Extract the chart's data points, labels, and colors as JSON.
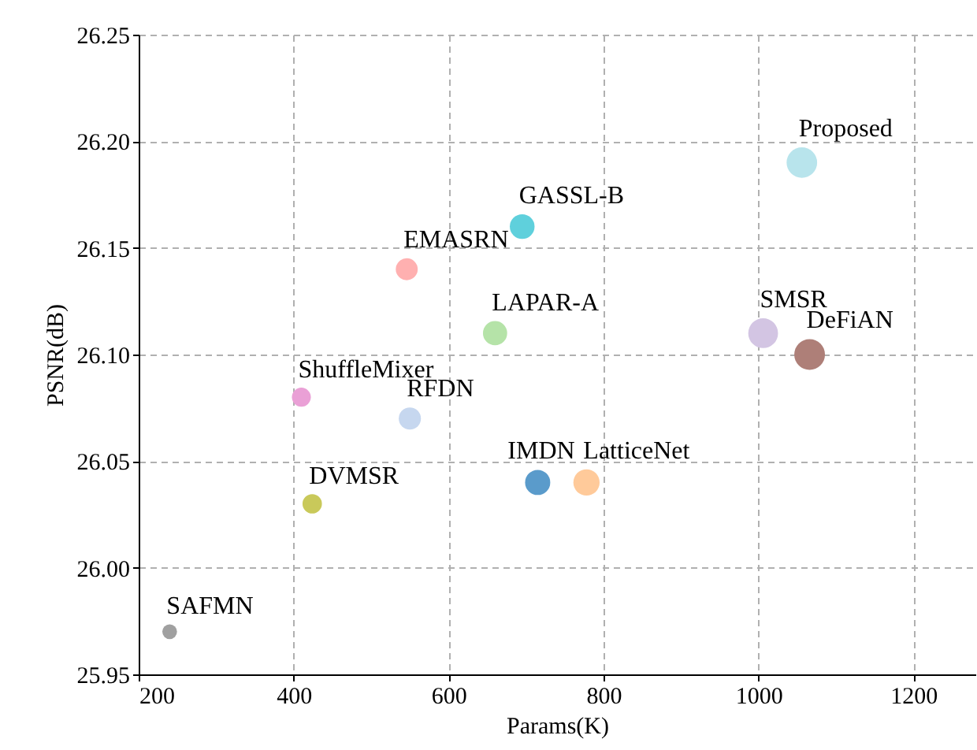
{
  "chart_data": {
    "type": "bubble",
    "xlabel": "Params(K)",
    "ylabel": "PSNR(dB)",
    "xlim": [
      200,
      1280
    ],
    "xticks": [
      200,
      400,
      600,
      800,
      1000,
      1200
    ],
    "ylim": [
      25.95,
      26.25
    ],
    "yticks": [
      25.95,
      {
        "value": 26.0,
        "label": "26.00"
      },
      26.05,
      {
        "value": 26.1,
        "label": "26.10"
      },
      26.15,
      {
        "value": 26.2,
        "label": "26.20"
      },
      26.25
    ],
    "grid": true,
    "legend": false,
    "series": [
      {
        "name": "Proposed",
        "color": "#b8e4ec",
        "x": [
          1056
        ],
        "values": [
          26.19
        ],
        "sizes": [
          0.99
        ]
      },
      {
        "name": "GASSL-B",
        "color": "#5fd0dc",
        "x": [
          695
        ],
        "values": [
          26.16
        ],
        "sizes": [
          0.65
        ]
      },
      {
        "name": "EMASRN",
        "color": "#ffb0b0",
        "x": [
          546
        ],
        "values": [
          26.14
        ],
        "sizes": [
          0.51
        ]
      },
      {
        "name": "LAPAR-A",
        "color": "#b5e3a8",
        "x": [
          660
        ],
        "values": [
          26.11
        ],
        "sizes": [
          0.62
        ]
      },
      {
        "name": "SMSR",
        "color": "#d3c5e3",
        "x": [
          1006
        ],
        "values": [
          26.11
        ],
        "sizes": [
          0.94
        ]
      },
      {
        "name": "DeFiAN",
        "color": "#ae7f78",
        "x": [
          1066
        ],
        "values": [
          26.1
        ],
        "sizes": [
          1
        ]
      },
      {
        "name": "ShuffleMixer",
        "color": "#eaa0d6",
        "x": [
          410
        ],
        "values": [
          26.08
        ],
        "sizes": [
          0.38
        ]
      },
      {
        "name": "RFDN",
        "color": "#c6d7ef",
        "x": [
          550
        ],
        "values": [
          26.07
        ],
        "sizes": [
          0.52
        ]
      },
      {
        "name": "IMDN",
        "color": "#5a9bcb",
        "x": [
          715
        ],
        "values": [
          26.04
        ],
        "sizes": [
          0.67
        ]
      },
      {
        "name": "LatticeNet",
        "color": "#ffca9a",
        "x": [
          778
        ],
        "values": [
          26.04
        ],
        "sizes": [
          0.73
        ]
      },
      {
        "name": "DVMSR",
        "color": "#c9c95a",
        "x": [
          424
        ],
        "values": [
          26.03
        ],
        "sizes": [
          0.4
        ]
      },
      {
        "name": "SAFMN",
        "color": "#a0a0a0",
        "x": [
          240
        ],
        "values": [
          25.97
        ],
        "sizes": [
          0.23
        ]
      }
    ]
  }
}
